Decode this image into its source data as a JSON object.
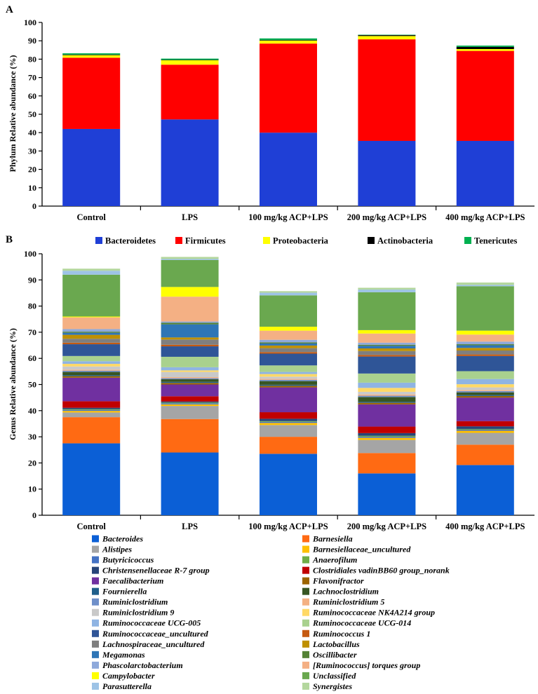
{
  "panels": {
    "a": "A",
    "b": "B"
  },
  "categories": [
    "Control",
    "LPS",
    "100 mg/kg ACP+LPS",
    "200 mg/kg ACP+LPS",
    "400 mg/kg ACP+LPS"
  ],
  "chart_data": [
    {
      "type": "bar",
      "stacked": true,
      "title": "",
      "xlabel": "",
      "ylabel": "Phylum Relative abundance (%)",
      "ylim": [
        0,
        100
      ],
      "yticks": [
        "0",
        "10",
        "20",
        "30",
        "40",
        "50",
        "60",
        "70",
        "80",
        "90",
        "100"
      ],
      "legend_position": "bottom",
      "categories": [
        "Control",
        "LPS",
        "100 mg/kg ACP+LPS",
        "200 mg/kg ACP+LPS",
        "400 mg/kg ACP+LPS"
      ],
      "series": [
        {
          "name": "Bacteroidetes",
          "color": "#1f3fd6",
          "values": [
            42.0,
            47.2,
            40.0,
            35.5,
            35.5
          ]
        },
        {
          "name": "Firmicutes",
          "color": "#ff0000",
          "values": [
            38.8,
            29.8,
            48.5,
            55.3,
            49.0
          ]
        },
        {
          "name": "Proteobacteria",
          "color": "#ffff00",
          "values": [
            1.4,
            2.4,
            1.6,
            1.8,
            1.0
          ]
        },
        {
          "name": "Actinobacteria",
          "color": "#000000",
          "values": [
            0.3,
            0.2,
            0.3,
            0.5,
            1.2
          ]
        },
        {
          "name": "Tenericutes",
          "color": "#00b050",
          "values": [
            0.7,
            0.7,
            0.9,
            0.2,
            0.7
          ]
        }
      ]
    },
    {
      "type": "bar",
      "stacked": true,
      "title": "",
      "xlabel": "",
      "ylabel": "Genus Relative abundance (%)",
      "ylim": [
        0,
        100
      ],
      "yticks": [
        "0",
        "10",
        "20",
        "30",
        "40",
        "50",
        "60",
        "70",
        "80",
        "90",
        "100"
      ],
      "legend_position": "bottom",
      "categories": [
        "Control",
        "LPS",
        "100 mg/kg ACP+LPS",
        "200 mg/kg ACP+LPS",
        "400 mg/kg ACP+LPS"
      ],
      "series": [
        {
          "name": "Bacteroides",
          "color": "#0b5fd6",
          "values": [
            27.5,
            24.0,
            23.5,
            16.0,
            19.2
          ]
        },
        {
          "name": "Barnesiella",
          "color": "#ff6a13",
          "values": [
            10.0,
            12.8,
            6.5,
            7.8,
            7.8
          ]
        },
        {
          "name": "Alistipes",
          "color": "#a5a5a5",
          "values": [
            1.8,
            5.0,
            4.5,
            5.0,
            4.5
          ]
        },
        {
          "name": "Barnesiellaceae_uncultured",
          "color": "#ffc000",
          "values": [
            0.6,
            0.6,
            0.8,
            0.8,
            0.8
          ]
        },
        {
          "name": "Butyricicoccus",
          "color": "#4472c4",
          "values": [
            0.4,
            0.4,
            0.4,
            0.4,
            0.4
          ]
        },
        {
          "name": "Anaerofilum",
          "color": "#70ad47",
          "values": [
            0.3,
            0.3,
            0.3,
            0.4,
            0.3
          ]
        },
        {
          "name": "Christensenellaceae R-7 group",
          "color": "#264478",
          "values": [
            0.5,
            0.4,
            0.9,
            1.0,
            1.0
          ]
        },
        {
          "name": "Clostridiales vadinBB60 group_norank",
          "color": "#c00000",
          "values": [
            2.5,
            2.0,
            2.5,
            2.5,
            2.0
          ]
        },
        {
          "name": "Faecalibacterium",
          "color": "#7030a0",
          "values": [
            9.0,
            4.5,
            9.5,
            8.5,
            9.0
          ]
        },
        {
          "name": "Flavonifractor",
          "color": "#9c6500",
          "values": [
            0.6,
            0.6,
            0.6,
            0.6,
            0.6
          ]
        },
        {
          "name": "Fournierella",
          "color": "#1f5f8b",
          "values": [
            0.4,
            0.4,
            0.4,
            0.4,
            0.4
          ]
        },
        {
          "name": "Lachnoclostridium",
          "color": "#375623",
          "values": [
            1.2,
            1.0,
            1.4,
            1.8,
            1.0
          ]
        },
        {
          "name": "Ruminiclostridium",
          "color": "#6e8fc9",
          "values": [
            0.5,
            0.4,
            0.5,
            0.5,
            0.5
          ]
        },
        {
          "name": "Ruminiclostridium 5",
          "color": "#f4b183",
          "values": [
            0.4,
            0.4,
            0.4,
            0.5,
            0.4
          ]
        },
        {
          "name": "Ruminiclostridium 9",
          "color": "#c9c9c9",
          "values": [
            1.2,
            2.0,
            0.8,
            1.0,
            1.0
          ]
        },
        {
          "name": "Ruminococcaceae NK4A214 group",
          "color": "#ffd966",
          "values": [
            1.0,
            0.6,
            1.0,
            1.5,
            1.2
          ]
        },
        {
          "name": "Ruminococcaceae UCG-005",
          "color": "#8fb4e3",
          "values": [
            1.0,
            1.2,
            0.8,
            2.0,
            2.0
          ]
        },
        {
          "name": "Ruminococcaceae UCG-014",
          "color": "#a9d18e",
          "values": [
            2.0,
            4.0,
            2.5,
            3.5,
            3.0
          ]
        },
        {
          "name": "Ruminococcaceae_uncultured",
          "color": "#2f5597",
          "values": [
            4.5,
            4.0,
            4.5,
            6.5,
            5.8
          ]
        },
        {
          "name": "Ruminococcus 1",
          "color": "#c55a11",
          "values": [
            0.6,
            0.6,
            0.6,
            0.6,
            0.6
          ]
        },
        {
          "name": "Lachnospiraceae_uncultured",
          "color": "#7f7f7f",
          "values": [
            1.5,
            2.0,
            1.5,
            1.5,
            1.5
          ]
        },
        {
          "name": "Lactobacillus",
          "color": "#bf9000",
          "values": [
            1.5,
            0.8,
            1.0,
            1.0,
            1.0
          ]
        },
        {
          "name": "Megamonas",
          "color": "#2e75b6",
          "values": [
            0.8,
            5.0,
            0.8,
            1.0,
            1.0
          ]
        },
        {
          "name": "Oscillibacter",
          "color": "#548235",
          "values": [
            0.4,
            0.6,
            0.4,
            0.4,
            0.4
          ]
        },
        {
          "name": "Phascolarctobacterium",
          "color": "#8ea9db",
          "values": [
            1.0,
            0.5,
            1.0,
            0.8,
            1.0
          ]
        },
        {
          "name": "[Ruminococcus] torques group",
          "color": "#f4b084",
          "values": [
            4.5,
            9.5,
            3.5,
            3.5,
            2.7
          ]
        },
        {
          "name": "Campylobacter",
          "color": "#ffff00",
          "values": [
            0.3,
            3.7,
            1.5,
            1.3,
            1.5
          ]
        },
        {
          "name": "Unclassified",
          "color": "#6aa84f",
          "values": [
            16.0,
            10.3,
            12.0,
            14.5,
            17.0
          ]
        },
        {
          "name": "Parasutterella",
          "color": "#9dc3e6",
          "values": [
            1.5,
            0.4,
            1.0,
            1.0,
            0.5
          ]
        },
        {
          "name": "Synergistes",
          "color": "#b4d79e",
          "values": [
            0.8,
            0.8,
            0.6,
            0.7,
            0.9
          ]
        }
      ]
    }
  ]
}
